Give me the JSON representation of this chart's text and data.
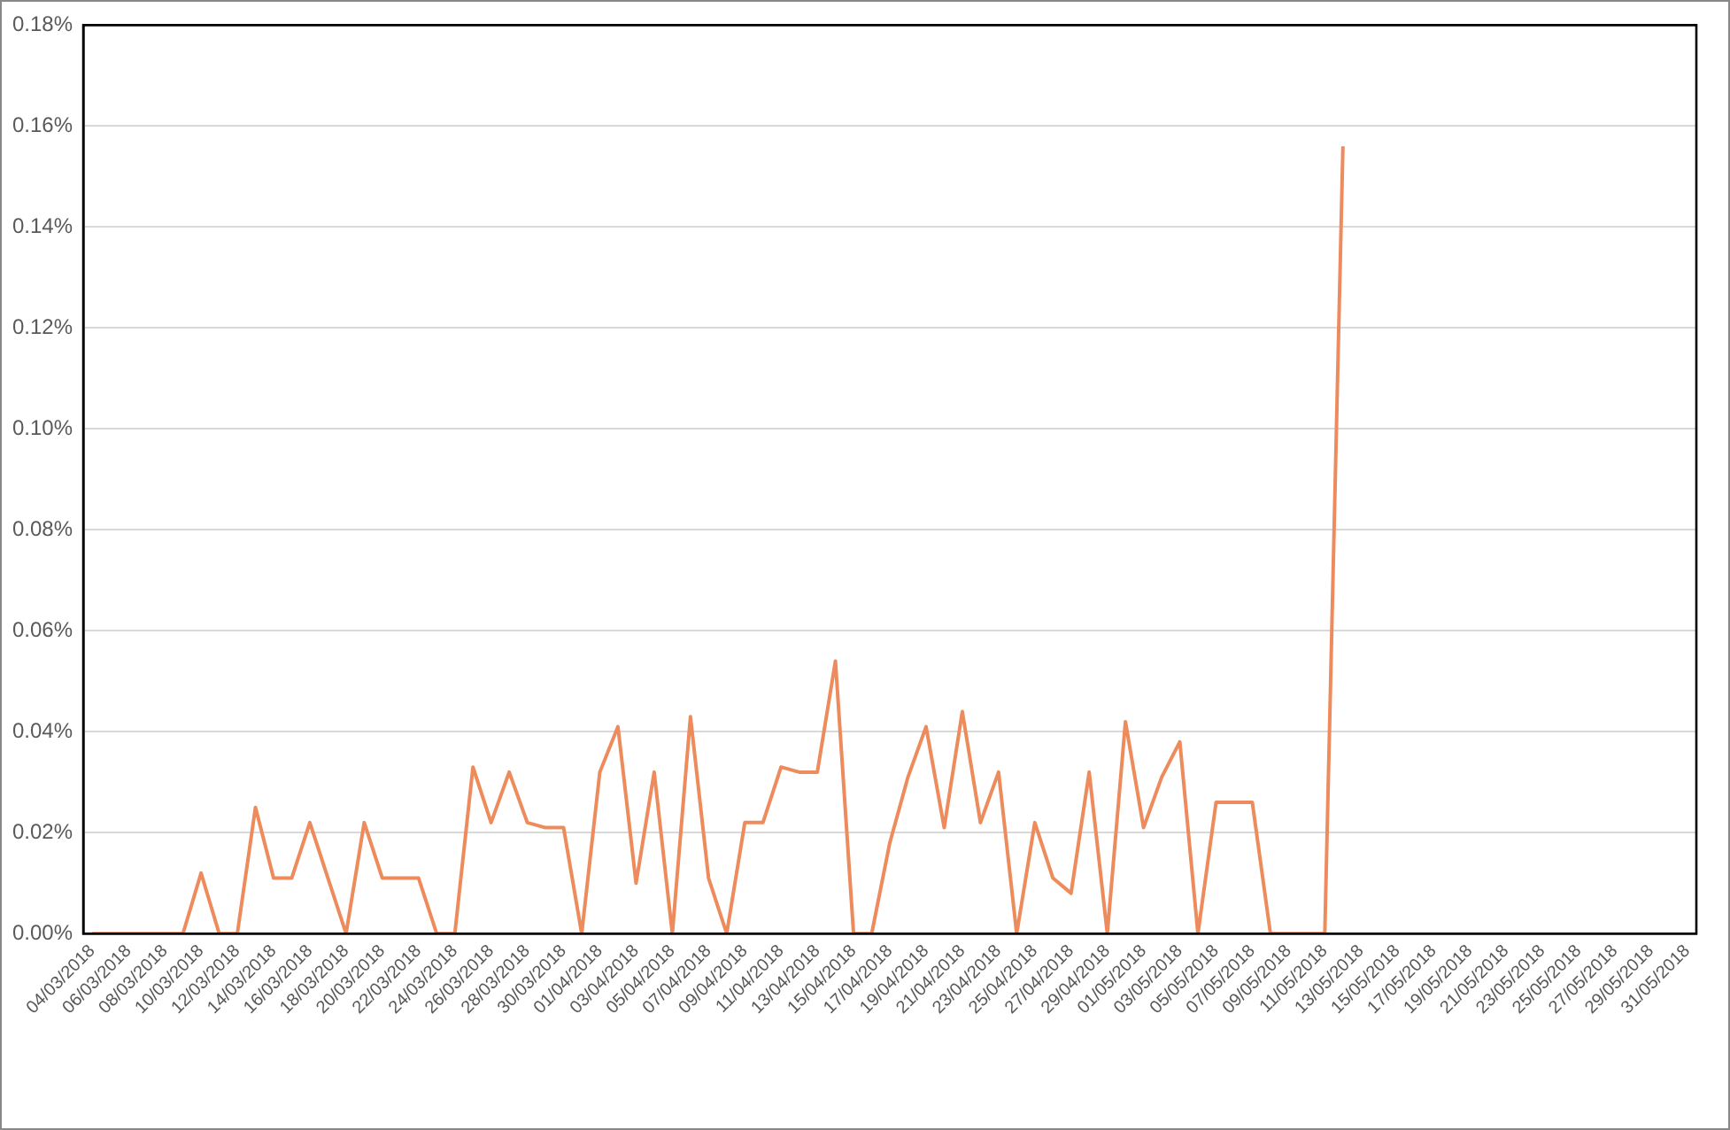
{
  "chart_data": {
    "type": "line",
    "categories": [
      "04/03/2018",
      null,
      "06/03/2018",
      null,
      "08/03/2018",
      null,
      "10/03/2018",
      null,
      "12/03/2018",
      null,
      "14/03/2018",
      null,
      "16/03/2018",
      null,
      "18/03/2018",
      null,
      "20/03/2018",
      null,
      "22/03/2018",
      null,
      "24/03/2018",
      null,
      "26/03/2018",
      null,
      "28/03/2018",
      null,
      "30/03/2018",
      null,
      "01/04/2018",
      null,
      "03/04/2018",
      null,
      "05/04/2018",
      null,
      "07/04/2018",
      null,
      "09/04/2018",
      null,
      "11/04/2018",
      null,
      "13/04/2018",
      null,
      "15/04/2018",
      null,
      "17/04/2018",
      null,
      "19/04/2018",
      null,
      "21/04/2018",
      null,
      "23/04/2018",
      null,
      "25/04/2018",
      null,
      "27/04/2018",
      null,
      "29/04/2018",
      null,
      "01/05/2018",
      null,
      "03/05/2018",
      null,
      "05/05/2018",
      null,
      "07/05/2018",
      null,
      "09/05/2018",
      null,
      "11/05/2018",
      null,
      "13/05/2018",
      null,
      "15/05/2018",
      null,
      "17/05/2018",
      null,
      "19/05/2018",
      null,
      "21/05/2018",
      null,
      "23/05/2018",
      null,
      "25/05/2018",
      null,
      "27/05/2018",
      null,
      "29/05/2018",
      null,
      "31/05/2018"
    ],
    "series": [
      {
        "color": "#ed8b5c",
        "values": [
          0,
          0,
          0,
          0,
          0,
          0,
          0.012,
          0,
          0,
          0.025,
          0.011,
          0.011,
          0.022,
          0.011,
          0,
          0.022,
          0.011,
          0.011,
          0.011,
          0,
          0,
          0.033,
          0.022,
          0.032,
          0.022,
          0.021,
          0.021,
          0,
          0.032,
          0.041,
          0.01,
          0.032,
          0,
          0.043,
          0.011,
          0,
          0.022,
          0.022,
          0.033,
          0.032,
          0.032,
          0.054,
          0,
          0,
          0.018,
          0.031,
          0.041,
          0.021,
          0.044,
          0.022,
          0.032,
          0,
          0.022,
          0.011,
          0.008,
          0.032,
          0,
          0.042,
          0.021,
          0.031,
          0.038,
          0,
          0.026,
          0.026,
          0.026,
          0,
          0,
          0,
          0,
          0.156,
          null,
          null,
          null,
          null,
          null,
          null,
          null,
          null,
          null,
          null,
          null,
          null,
          null,
          null,
          null,
          null,
          null,
          null,
          null
        ]
      }
    ],
    "ylim": [
      0,
      0.18
    ],
    "yticks": [
      {
        "value": 0,
        "label": "0.00%"
      },
      {
        "value": 0.02,
        "label": "0.02%"
      },
      {
        "value": 0.04,
        "label": "0.04%"
      },
      {
        "value": 0.06,
        "label": "0.06%"
      },
      {
        "value": 0.08,
        "label": "0.08%"
      },
      {
        "value": 0.1,
        "label": "0.10%"
      },
      {
        "value": 0.12,
        "label": "0.12%"
      },
      {
        "value": 0.14,
        "label": "0.14%"
      },
      {
        "value": 0.16,
        "label": "0.16%"
      },
      {
        "value": 0.18,
        "label": "0.18%"
      }
    ],
    "grid": "y",
    "marker": "none",
    "line_style": "solid",
    "legend": false
  }
}
